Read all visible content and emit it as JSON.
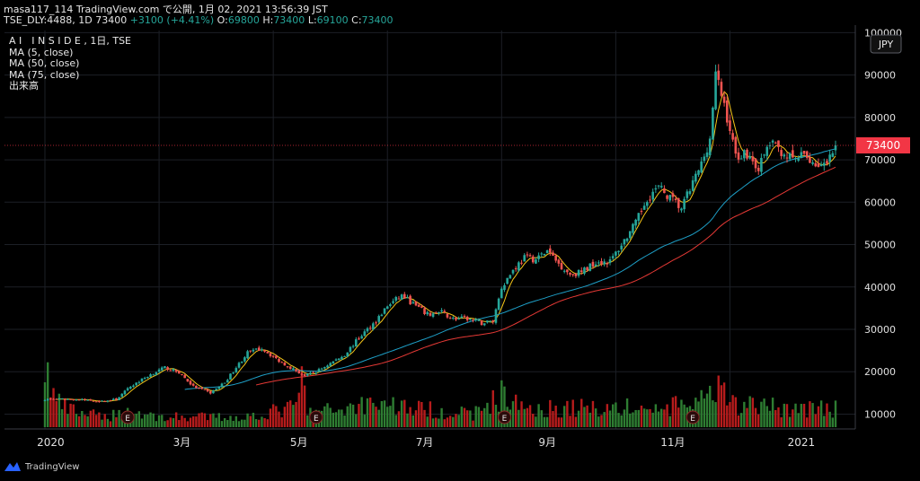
{
  "header": {
    "title_line": "masa117_114 TradingView.com で公開, 1月 02, 2021 13:56:39 JST",
    "symbol": "TSE_DLY:4488, 1D 73400",
    "change": "+3100 (+4.41%)",
    "o_label": "O:",
    "o_value": "69800",
    "h_label": "H:",
    "h_value": "73400",
    "l_label": "L:",
    "l_value": "69100",
    "c_label": "C:",
    "c_value": "73400"
  },
  "legend": {
    "title": "A I　I N S I D E , 1日, TSE",
    "ma5": "MA (5, close)",
    "ma50": "MA (50, close)",
    "ma75": "MA (75, close)",
    "volume": "出来高"
  },
  "footer": {
    "brand": "TradingView"
  },
  "chart_data": {
    "type": "candlestick",
    "currency": "JPY",
    "last_price": 73400,
    "last_price_label": "73400",
    "y_axis_ticks": [
      "100000",
      "90000",
      "80000",
      "70000",
      "60000",
      "50000",
      "40000",
      "30000",
      "20000",
      "10000"
    ],
    "y_axis_values": [
      100000,
      90000,
      80000,
      70000,
      60000,
      50000,
      40000,
      30000,
      20000,
      10000
    ],
    "ylim": [
      6500,
      100500
    ],
    "x_axis_labels": [
      "2020",
      "3月",
      "5月",
      "7月",
      "9月",
      "11月",
      "2021"
    ],
    "earnings_marker": "E",
    "colors": {
      "up": "#26a69a",
      "down": "#ef5350",
      "ma5": "#f5c518",
      "ma50": "#1e9fc7",
      "ma75": "#e53935",
      "last_price": "#f23645"
    },
    "price_keyframes": [
      [
        0,
        13500
      ],
      [
        10,
        13500
      ],
      [
        20,
        13000
      ],
      [
        25,
        13500
      ],
      [
        30,
        16500
      ],
      [
        36,
        19000
      ],
      [
        42,
        21000
      ],
      [
        47,
        19800
      ],
      [
        52,
        16500
      ],
      [
        58,
        15000
      ],
      [
        63,
        17500
      ],
      [
        67,
        21000
      ],
      [
        71,
        24500
      ],
      [
        76,
        25500
      ],
      [
        81,
        23000
      ],
      [
        86,
        21000
      ],
      [
        91,
        19000
      ],
      [
        95,
        20000
      ],
      [
        100,
        22000
      ],
      [
        105,
        24000
      ],
      [
        110,
        28000
      ],
      [
        116,
        32000
      ],
      [
        120,
        35500
      ],
      [
        125,
        38000
      ],
      [
        129,
        36000
      ],
      [
        134,
        33500
      ],
      [
        139,
        34000
      ],
      [
        143,
        32500
      ],
      [
        148,
        32500
      ],
      [
        153,
        31500
      ],
      [
        157,
        32000
      ],
      [
        160,
        40000
      ],
      [
        164,
        44000
      ],
      [
        168,
        47000
      ],
      [
        172,
        46500
      ],
      [
        176,
        48500
      ],
      [
        180,
        45500
      ],
      [
        184,
        43000
      ],
      [
        188,
        43500
      ],
      [
        193,
        46000
      ],
      [
        198,
        46000
      ],
      [
        202,
        50000
      ],
      [
        207,
        55000
      ],
      [
        211,
        61000
      ],
      [
        215,
        63500
      ],
      [
        219,
        61000
      ],
      [
        223,
        58500
      ],
      [
        226,
        63000
      ],
      [
        230,
        69000
      ],
      [
        233,
        75000
      ],
      [
        235,
        90000
      ],
      [
        238,
        83000
      ],
      [
        242,
        71000
      ],
      [
        246,
        71500
      ],
      [
        250,
        68000
      ],
      [
        254,
        74000
      ],
      [
        258,
        72000
      ],
      [
        262,
        70000
      ],
      [
        266,
        71000
      ],
      [
        270,
        69000
      ],
      [
        274,
        68500
      ],
      [
        277,
        73400
      ]
    ],
    "volume_keyframes": [
      [
        0,
        22000
      ],
      [
        2,
        14000
      ],
      [
        4,
        9000
      ],
      [
        8,
        6000
      ],
      [
        20,
        3500
      ],
      [
        30,
        5500
      ],
      [
        40,
        3500
      ],
      [
        70,
        3500
      ],
      [
        88,
        7000
      ],
      [
        90,
        18000
      ],
      [
        92,
        5000
      ],
      [
        105,
        6500
      ],
      [
        115,
        9000
      ],
      [
        130,
        6500
      ],
      [
        150,
        4500
      ],
      [
        161,
        12000
      ],
      [
        164,
        8000
      ],
      [
        176,
        6500
      ],
      [
        200,
        7000
      ],
      [
        215,
        6000
      ],
      [
        234,
        10000
      ],
      [
        236,
        13000
      ],
      [
        240,
        8000
      ],
      [
        250,
        7500
      ],
      [
        262,
        6500
      ],
      [
        277,
        6500
      ]
    ],
    "earnings_bars": [
      29,
      95,
      161,
      227
    ]
  }
}
